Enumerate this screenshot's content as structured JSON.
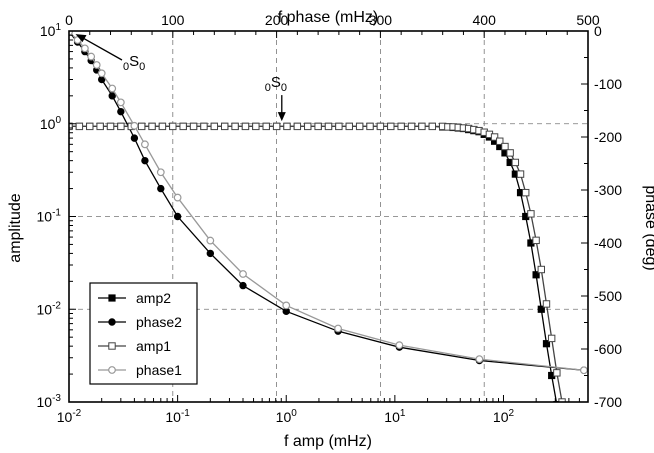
{
  "chart_data": {
    "type": "line",
    "title": "",
    "xlabel": "f amp (mHz)",
    "x_scale": "log",
    "xlim": [
      0.01,
      600
    ],
    "x_ticks": [
      0.01,
      0.1,
      1,
      10,
      100
    ],
    "x_tick_labels": [
      [
        "10",
        "-2"
      ],
      [
        "10",
        "-1"
      ],
      [
        "10",
        "0"
      ],
      [
        "10",
        "1"
      ],
      [
        "10",
        "2"
      ]
    ],
    "ylabel": "amplitude",
    "y_scale": "log",
    "ylim": [
      0.001,
      10
    ],
    "y_ticks": [
      0.001,
      0.01,
      0.1,
      1,
      10
    ],
    "y_tick_labels": [
      [
        "10",
        "-3"
      ],
      [
        "10",
        "-2"
      ],
      [
        "10",
        "-1"
      ],
      [
        "10",
        "0"
      ],
      [
        "10",
        "1"
      ]
    ],
    "top_xlabel": "f phase (mHz)",
    "top_xlim": [
      0,
      500
    ],
    "top_x_ticks": [
      "0",
      "100",
      "200",
      "300",
      "400",
      "500"
    ],
    "right_ylabel": "phase (deg)",
    "right_ylim": [
      -700,
      0
    ],
    "right_y_ticks": [
      "0",
      "-100",
      "-200",
      "-300",
      "-400",
      "-500",
      "-600",
      "-700"
    ],
    "grid": true,
    "legend_position": "bottom-left",
    "annotations": [
      {
        "base": "S",
        "pre_sub": "0",
        "sub": "0",
        "x_amp": 0.011,
        "amplitude": 9.5
      },
      {
        "base": "S",
        "pre_sub": "0",
        "sub": "0",
        "f_phase": 205,
        "phase": -170
      }
    ],
    "series": [
      {
        "name": "amp2",
        "axes": "top-right",
        "marker": "filled-square",
        "color": "#000000",
        "x": [
          0,
          10,
          20,
          30,
          40,
          50,
          60,
          70,
          80,
          90,
          100,
          110,
          120,
          130,
          140,
          150,
          160,
          170,
          180,
          190,
          200,
          210,
          220,
          230,
          240,
          250,
          260,
          270,
          280,
          290,
          300,
          310,
          320,
          330,
          340,
          350,
          360,
          365,
          370,
          375,
          380,
          385,
          390,
          395,
          400,
          405,
          410,
          415,
          420,
          425,
          430,
          435,
          440,
          445,
          450,
          455,
          460,
          465,
          470
        ],
        "y": [
          -180,
          -180,
          -180,
          -180,
          -180,
          -180,
          -180,
          -180,
          -180,
          -180,
          -180,
          -180,
          -180,
          -180,
          -180,
          -180,
          -180,
          -180,
          -180,
          -180,
          -180,
          -180,
          -180,
          -180,
          -180,
          -180,
          -180,
          -180,
          -180,
          -180,
          -180,
          -180,
          -180,
          -180,
          -180,
          -180,
          -181,
          -181,
          -182,
          -183,
          -184,
          -186,
          -188,
          -190,
          -195,
          -200,
          -208,
          -218,
          -230,
          -248,
          -270,
          -305,
          -350,
          -400,
          -460,
          -525,
          -590,
          -650,
          -705
        ]
      },
      {
        "name": "phase2",
        "axes": "bottom-left",
        "marker": "filled-circle",
        "color": "#000000",
        "x": [
          0.01,
          0.012,
          0.014,
          0.016,
          0.018,
          0.02,
          0.025,
          0.03,
          0.04,
          0.05,
          0.07,
          0.1,
          0.2,
          0.4,
          1,
          3,
          11,
          60,
          550
        ],
        "y": [
          9.8,
          7.6,
          6.0,
          4.8,
          3.8,
          3.0,
          2.0,
          1.35,
          0.7,
          0.4,
          0.2,
          0.1,
          0.04,
          0.018,
          0.0095,
          0.0058,
          0.0039,
          0.0028,
          0.0022
        ]
      },
      {
        "name": "amp1",
        "axes": "top-right",
        "marker": "open-square",
        "color": "#444444",
        "x": [
          0,
          10,
          20,
          30,
          40,
          50,
          60,
          70,
          80,
          90,
          100,
          110,
          120,
          130,
          140,
          150,
          160,
          170,
          180,
          190,
          200,
          210,
          220,
          230,
          240,
          250,
          260,
          270,
          280,
          290,
          300,
          310,
          320,
          330,
          340,
          350,
          360,
          365,
          370,
          375,
          380,
          385,
          390,
          395,
          400,
          405,
          410,
          415,
          420,
          425,
          430,
          435,
          440,
          445,
          450,
          455,
          460,
          465,
          470,
          475
        ],
        "y": [
          -180,
          -180,
          -180,
          -180,
          -180,
          -180,
          -180,
          -180,
          -180,
          -180,
          -180,
          -180,
          -180,
          -180,
          -180,
          -180,
          -180,
          -180,
          -180,
          -180,
          -180,
          -180,
          -180,
          -180,
          -180,
          -180,
          -180,
          -180,
          -180,
          -180,
          -180,
          -180,
          -180,
          -180,
          -180,
          -180,
          -180,
          -181,
          -181,
          -182,
          -183,
          -184,
          -186,
          -188,
          -191,
          -195,
          -200,
          -208,
          -218,
          -230,
          -248,
          -270,
          -305,
          -345,
          -395,
          -450,
          -515,
          -580,
          -645,
          -700
        ]
      },
      {
        "name": "phase1",
        "axes": "bottom-left",
        "marker": "open-circle",
        "color": "#999999",
        "x": [
          0.01,
          0.012,
          0.014,
          0.016,
          0.018,
          0.02,
          0.025,
          0.03,
          0.04,
          0.05,
          0.07,
          0.1,
          0.2,
          0.4,
          1,
          3,
          11,
          60,
          550
        ],
        "y": [
          9.8,
          8.0,
          6.5,
          5.3,
          4.3,
          3.5,
          2.4,
          1.7,
          0.95,
          0.6,
          0.3,
          0.16,
          0.055,
          0.024,
          0.011,
          0.0062,
          0.0041,
          0.0029,
          0.0022
        ]
      }
    ]
  }
}
